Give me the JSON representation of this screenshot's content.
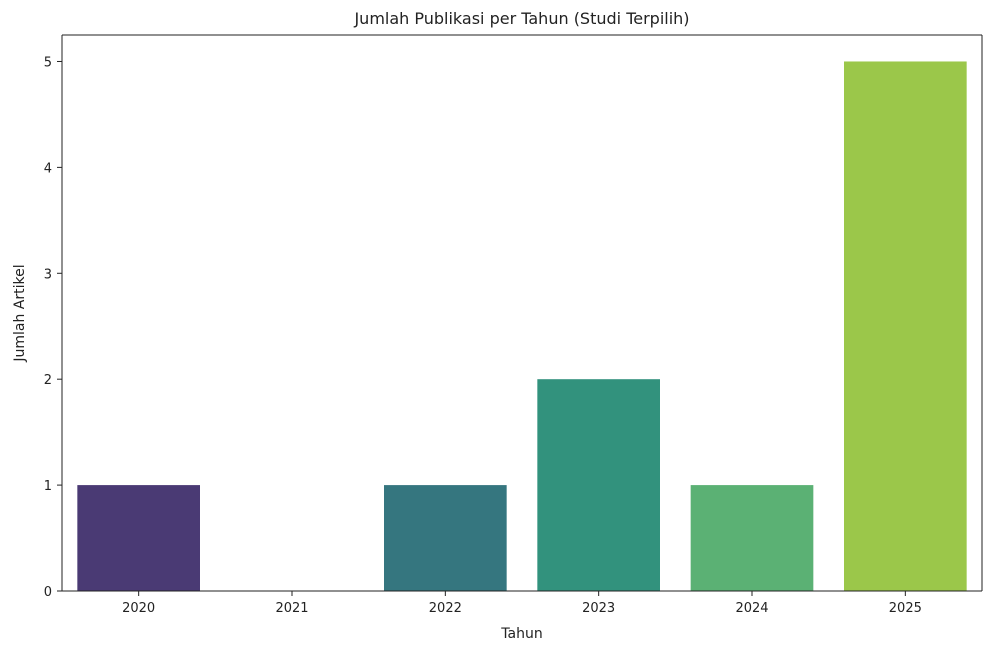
{
  "chart_data": {
    "type": "bar",
    "title": "Jumlah Publikasi per Tahun (Studi Terpilih)",
    "xlabel": "Tahun",
    "ylabel": "Jumlah Artikel",
    "categories": [
      "2020",
      "2021",
      "2022",
      "2023",
      "2024",
      "2025"
    ],
    "values": [
      1,
      0,
      1,
      2,
      1,
      5
    ],
    "colors": [
      "#4a3a74",
      "#3b528b",
      "#35767f",
      "#32927d",
      "#5bb174",
      "#9bc74a"
    ],
    "ylim": [
      0,
      5.25
    ],
    "yticks": [
      0,
      1,
      2,
      3,
      4,
      5
    ],
    "grid": false,
    "legend": "none"
  }
}
